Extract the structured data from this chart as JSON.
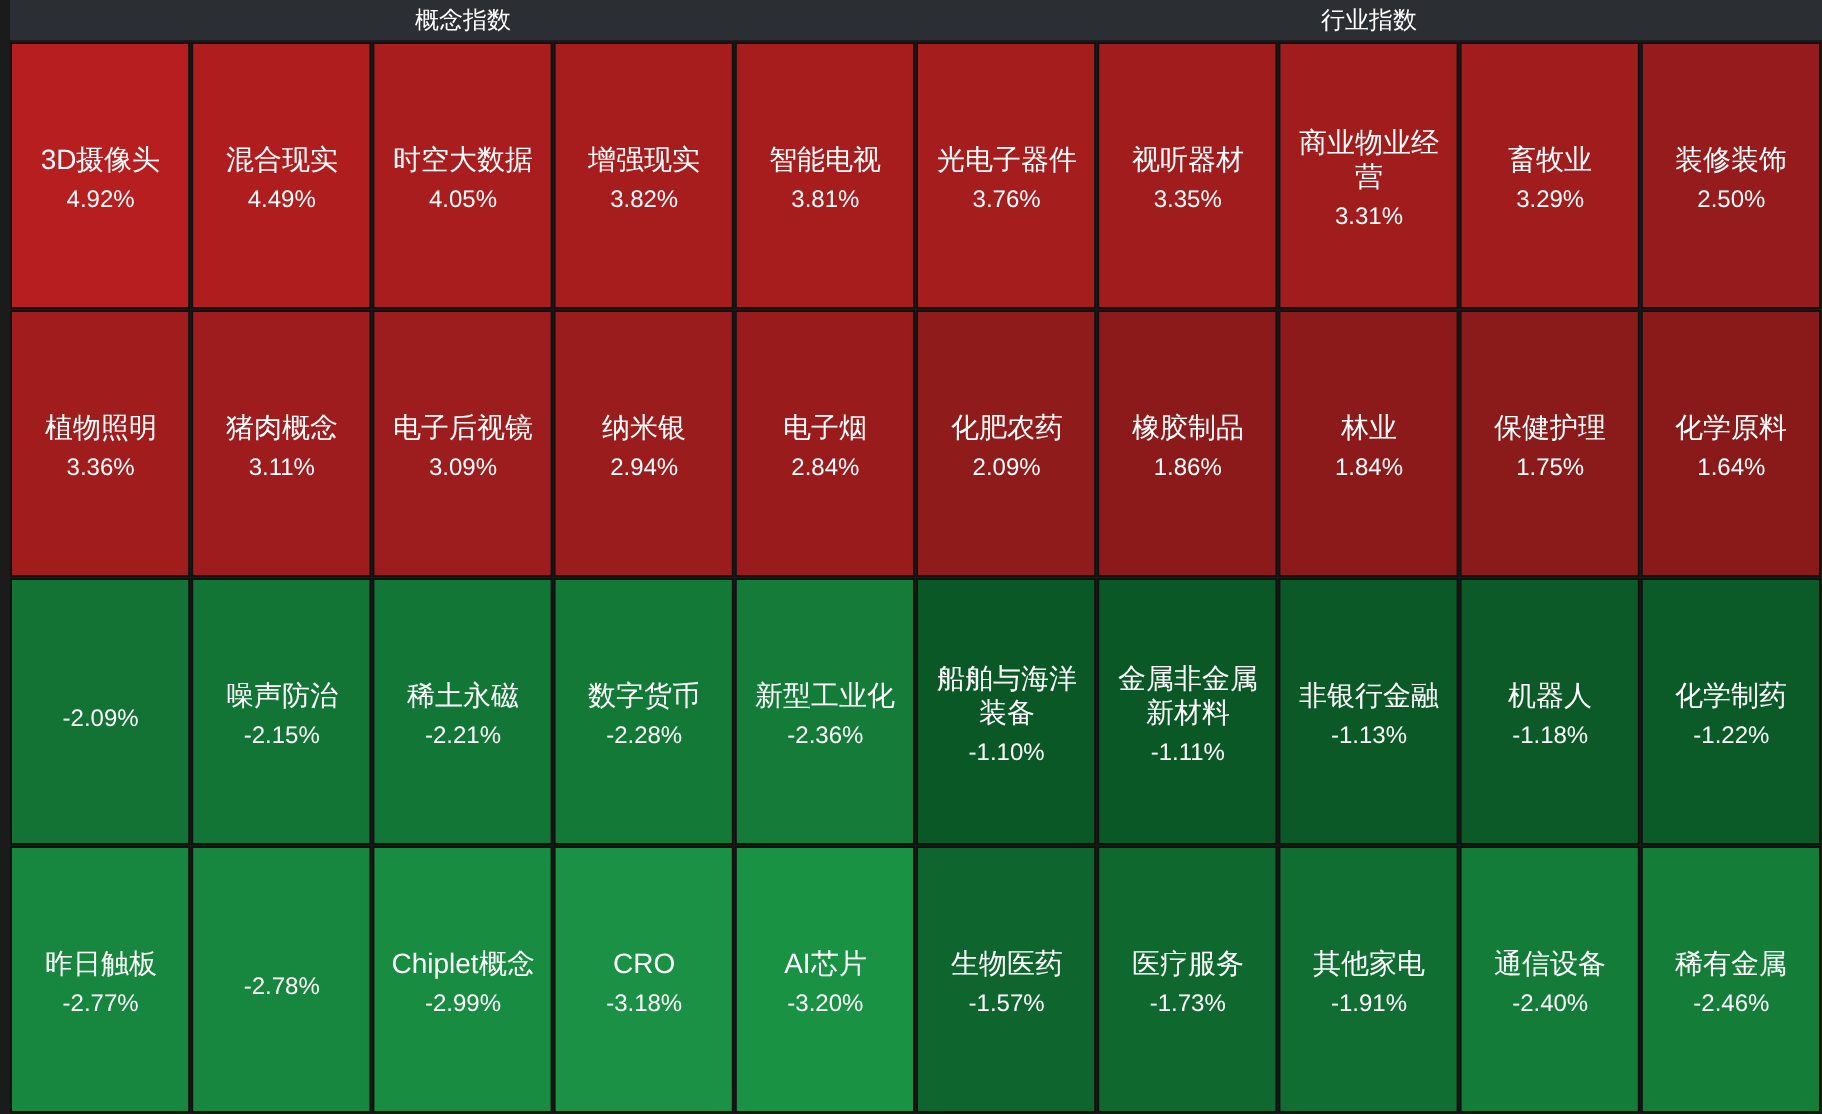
{
  "chart_data": [
    {
      "type": "other",
      "title": "概念指数",
      "categories": [
        "3D摄像头",
        "混合现实",
        "时空大数据",
        "增强现实",
        "智能电视",
        "植物照明",
        "猪肉概念",
        "电子后视镜",
        "纳米银",
        "电子烟",
        null,
        "噪声防治",
        "稀土永磁",
        "数字货币",
        "新型工业化",
        "昨日触板",
        null,
        "Chiplet概念",
        "CRO",
        "AI芯片"
      ],
      "values": [
        4.92,
        4.49,
        4.05,
        3.82,
        3.81,
        3.36,
        3.11,
        3.09,
        2.94,
        2.84,
        -2.09,
        -2.15,
        -2.21,
        -2.28,
        -2.36,
        -2.77,
        -2.78,
        -2.99,
        -3.18,
        -3.2
      ],
      "value_labels": [
        "4.92%",
        "4.49%",
        "4.05%",
        "3.82%",
        "3.81%",
        "3.36%",
        "3.11%",
        "3.09%",
        "2.94%",
        "2.84%",
        "-2.09%",
        "-2.15%",
        "-2.21%",
        "-2.28%",
        "-2.36%",
        "-2.77%",
        "-2.78%",
        "-2.99%",
        "-3.18%",
        "-3.20%"
      ]
    },
    {
      "type": "other",
      "title": "行业指数",
      "categories": [
        "光电子器件",
        "视听器材",
        "商业物业经营",
        "畜牧业",
        "装修装饰",
        "化肥农药",
        "橡胶制品",
        "林业",
        "保健护理",
        "化学原料",
        "船舶与海洋装备",
        "金属非金属新材料",
        "非银行金融",
        "机器人",
        "化学制药",
        "生物医药",
        "医疗服务",
        "其他家电",
        "通信设备",
        "稀有金属"
      ],
      "values": [
        3.76,
        3.35,
        3.31,
        3.29,
        2.5,
        2.09,
        1.86,
        1.84,
        1.75,
        1.64,
        -1.1,
        -1.11,
        -1.13,
        -1.18,
        -1.22,
        -1.57,
        -1.73,
        -1.91,
        -2.4,
        -2.46
      ],
      "value_labels": [
        "3.76%",
        "3.35%",
        "3.31%",
        "3.29%",
        "2.50%",
        "2.09%",
        "1.86%",
        "1.84%",
        "1.75%",
        "1.64%",
        "-1.10%",
        "-1.11%",
        "-1.13%",
        "-1.18%",
        "-1.22%",
        "-1.57%",
        "-1.73%",
        "-1.91%",
        "-2.40%",
        "-2.46%"
      ]
    }
  ]
}
